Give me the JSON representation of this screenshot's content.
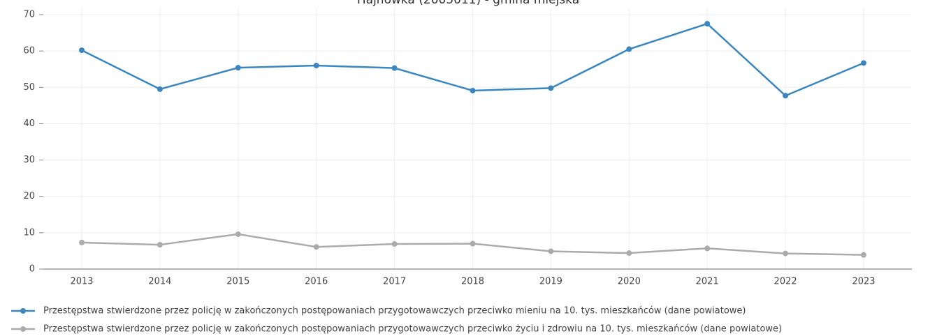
{
  "chart_data": {
    "type": "line",
    "title": "Hajnówka (2005011) - gmina miejska",
    "categories": [
      "2013",
      "2014",
      "2015",
      "2016",
      "2017",
      "2018",
      "2019",
      "2020",
      "2021",
      "2022",
      "2023"
    ],
    "series": [
      {
        "name": "Przestępstwa stwierdzone przez policję w zakończonych postępowaniach przygotowawczych przeciwko mieniu na 10. tys. mieszkańców (dane powiatowe)",
        "color": "#3a87c0",
        "values": [
          60.2,
          49.5,
          55.4,
          56.0,
          55.3,
          49.1,
          49.8,
          60.5,
          67.5,
          47.7,
          56.7
        ]
      },
      {
        "name": "Przestępstwa stwierdzone przez policję w zakończonych postępowaniach przygotowawczych przeciwko życiu i zdrowiu na 10. tys. mieszkańców (dane powiatowe)",
        "color": "#a9abad",
        "values": [
          7.3,
          6.7,
          9.6,
          6.1,
          6.9,
          7.0,
          4.9,
          4.4,
          5.7,
          4.3,
          3.9
        ]
      }
    ],
    "ylim": [
      0,
      70
    ],
    "yticks": [
      0,
      10,
      20,
      30,
      40,
      50,
      60,
      70
    ],
    "grid": true
  }
}
